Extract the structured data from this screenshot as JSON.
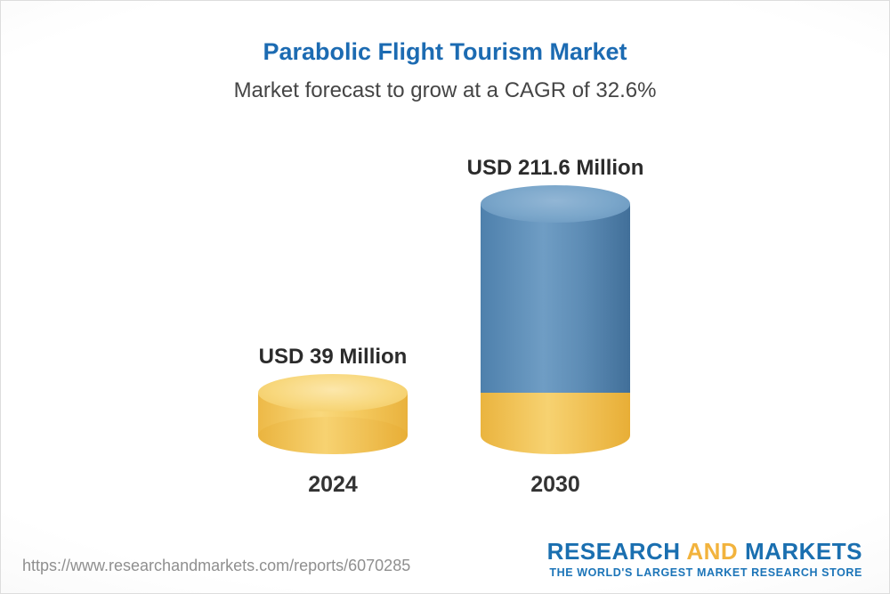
{
  "header": {
    "title": "Parabolic Flight Tourism Market",
    "subtitle": "Market forecast to grow at a CAGR of 32.6%"
  },
  "chart_data": {
    "type": "bar",
    "title": "Parabolic Flight Tourism Market",
    "subtitle": "Market forecast to grow at a CAGR of 32.6%",
    "cagr_percent": 32.6,
    "unit": "USD Million",
    "categories": [
      "2024",
      "2030"
    ],
    "values": [
      39,
      211.6
    ],
    "value_labels": [
      "USD 39 Million",
      "USD 211.6 Million"
    ],
    "ylim": [
      0,
      220
    ],
    "legend": "none",
    "grid": false,
    "bar_style": "3d-cylinder",
    "colors": {
      "bar_2024": "#F5C95E",
      "bar_2030": "#5D8CB5",
      "bar_2030_base": "#F2BE4A",
      "title_accent": "#1C6BB2"
    }
  },
  "footer": {
    "url": "https://www.researchandmarkets.com/reports/6070285",
    "logo": {
      "research": "RESEARCH",
      "and": "AND",
      "markets": "MARKETS",
      "tagline": "THE WORLD'S LARGEST MARKET RESEARCH STORE"
    }
  }
}
